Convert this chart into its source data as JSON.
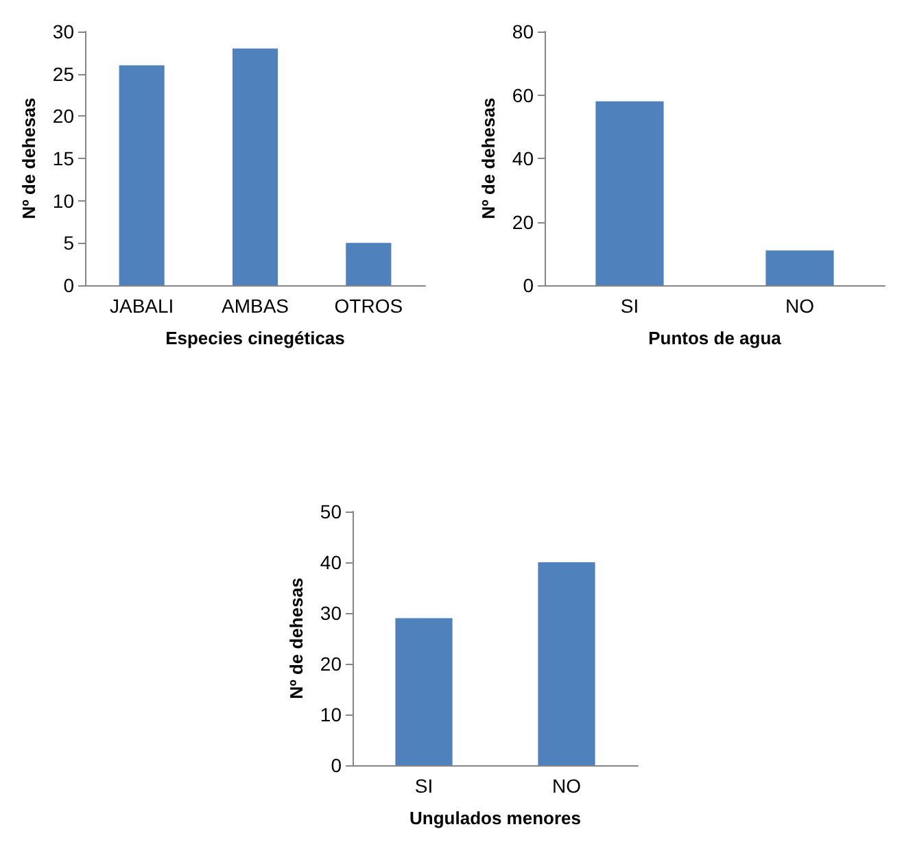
{
  "chart_data": [
    {
      "type": "bar",
      "categories": [
        "JABALI",
        "AMBAS",
        "OTROS"
      ],
      "values": [
        26,
        28,
        5
      ],
      "color": "#4f81bd",
      "xlabel": "Especies cinegéticas",
      "ylabel": "Nº de dehesas",
      "ylim": [
        0,
        30
      ],
      "yticks": [
        0,
        5,
        10,
        15,
        20,
        25,
        30
      ],
      "grid": false
    },
    {
      "type": "bar",
      "categories": [
        "SI",
        "NO"
      ],
      "values": [
        58,
        11
      ],
      "color": "#4f81bd",
      "xlabel": "Puntos de agua",
      "ylabel": "Nº de dehesas",
      "ylim": [
        0,
        80
      ],
      "yticks": [
        0,
        20,
        40,
        60,
        80
      ],
      "grid": false
    },
    {
      "type": "bar",
      "categories": [
        "SI",
        "NO"
      ],
      "values": [
        29,
        40
      ],
      "color": "#4f81bd",
      "xlabel": "Ungulados menores",
      "ylabel": "Nº de dehesas",
      "ylim": [
        0,
        50
      ],
      "yticks": [
        0,
        10,
        20,
        30,
        40,
        50
      ],
      "grid": false
    }
  ]
}
